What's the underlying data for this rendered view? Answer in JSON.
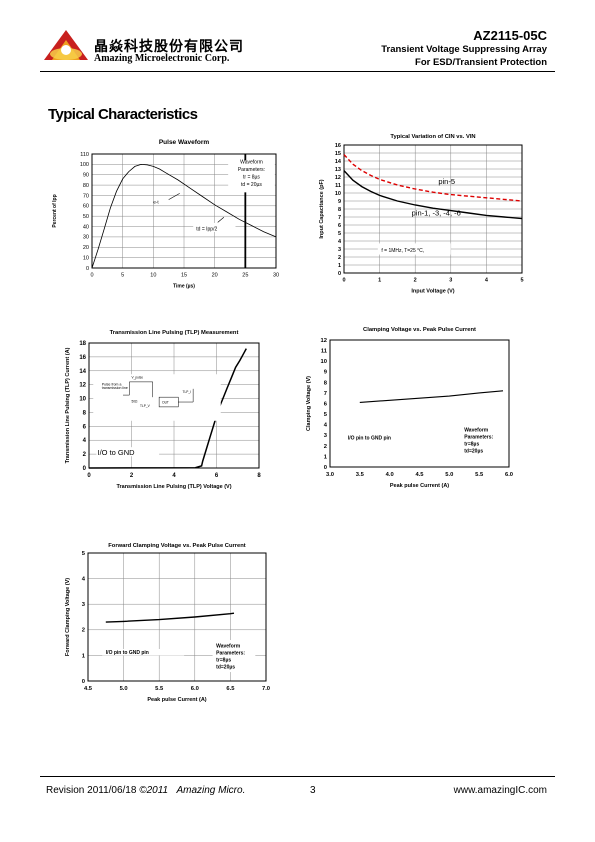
{
  "header": {
    "company_zh": "晶焱科技股份有限公司",
    "company_en": "Amazing Microelectronic Corp.",
    "part_number": "AZ2115-05C",
    "subtitle1": "Transient Voltage Suppressing Array",
    "subtitle2": "For ESD/Transient Protection",
    "logo_colors": {
      "red": "#c8201e",
      "orange": "#f0a020",
      "yellow": "#f7d04a"
    }
  },
  "section_title": "Typical Characteristics",
  "footer": {
    "revision": "Revision 2011/06/18",
    "copyright": "©2011",
    "company": "Amazing Micro.",
    "page": "3",
    "url": "www.amazingIC.com"
  },
  "chart_data": [
    {
      "id": "pulse-waveform",
      "type": "line",
      "title": "Pulse Waveform",
      "xlabel": "Time (µs)",
      "ylabel": "Percent of Ipp",
      "xlim": [
        0,
        30
      ],
      "ylim": [
        0,
        110
      ],
      "xticks": [
        0,
        5,
        10,
        15,
        20,
        25,
        30
      ],
      "yticks": [
        0,
        10,
        20,
        30,
        40,
        50,
        60,
        70,
        80,
        90,
        100,
        110
      ],
      "grid": true,
      "legend_box": [
        "Waveform",
        "Parameters:",
        "tr = 8µs",
        "td = 20µs"
      ],
      "annotations": [
        "e-t",
        "td = Ipp/2"
      ],
      "series": [
        {
          "x": [
            0,
            1,
            2,
            3,
            4,
            5,
            6,
            7,
            8,
            9,
            10,
            11,
            12,
            14,
            16,
            18,
            20,
            22,
            24,
            26,
            28,
            30
          ],
          "y": [
            0,
            18,
            38,
            58,
            74,
            86,
            93,
            98,
            100,
            99.5,
            98,
            95.5,
            92,
            85,
            77,
            69,
            61,
            54,
            47,
            41,
            35,
            30
          ]
        }
      ],
      "vertical_marker_x": 25
    },
    {
      "id": "cin-vs-vin",
      "type": "line",
      "title": "Typical Variation of CIN vs. VIN",
      "xlabel": "Input Voltage (V)",
      "ylabel": "Input Capacitance (pF)",
      "xlim": [
        0,
        5
      ],
      "ylim": [
        0,
        16
      ],
      "xticks": [
        0,
        1,
        2,
        3,
        4,
        5
      ],
      "yticks": [
        0,
        1,
        2,
        3,
        4,
        5,
        6,
        7,
        8,
        9,
        10,
        11,
        12,
        13,
        14,
        15,
        16
      ],
      "grid": true,
      "note": "f = 1MHz, T=25 °C,",
      "series": [
        {
          "name": "pin-5",
          "color": "#dd0000",
          "dashed": true,
          "x": [
            0,
            0.25,
            0.5,
            0.75,
            1,
            1.5,
            2,
            2.5,
            3,
            3.5,
            4,
            4.5,
            5
          ],
          "y": [
            14.8,
            13.6,
            12.8,
            12.2,
            11.7,
            11.0,
            10.5,
            10.1,
            9.8,
            9.6,
            9.4,
            9.2,
            9.0
          ]
        },
        {
          "name": "pin-1, -3, -4, -6",
          "color": "#000000",
          "dashed": false,
          "x": [
            0,
            0.25,
            0.5,
            0.75,
            1,
            1.5,
            2,
            2.5,
            3,
            3.5,
            4,
            4.5,
            5
          ],
          "y": [
            12.8,
            11.6,
            10.8,
            10.2,
            9.7,
            9.0,
            8.5,
            8.1,
            7.8,
            7.5,
            7.2,
            7.0,
            6.8
          ]
        }
      ]
    },
    {
      "id": "tlp",
      "type": "line",
      "title": "Transmission Line Pulsing (TLP) Measurement",
      "xlabel": "Transmission Line Pulsing (TLP) Voltage (V)",
      "ylabel": "Transmission Line Pulsing (TLP) Current (A)",
      "xlim": [
        0,
        8
      ],
      "ylim": [
        0,
        18
      ],
      "xticks": [
        0,
        2,
        4,
        6,
        8
      ],
      "yticks": [
        0,
        2,
        4,
        6,
        8,
        10,
        12,
        14,
        16,
        18
      ],
      "grid": true,
      "label": "I/O to GND",
      "inset_labels": [
        "Pulse from a",
        "transmission line",
        "V_pulse",
        "50Ω",
        "DUT",
        "TLP_V",
        "TLP_I"
      ],
      "series": [
        {
          "x": [
            0,
            5.0,
            5.3,
            5.35,
            5.5,
            5.7,
            5.9,
            6.1,
            6.3,
            6.5,
            6.7,
            6.9,
            7.1,
            7.3,
            7.4
          ],
          "y": [
            0,
            0.05,
            0.3,
            1,
            2.5,
            4.5,
            6.5,
            8.5,
            10,
            11.5,
            13,
            14.5,
            15.5,
            16.6,
            17.2
          ]
        }
      ]
    },
    {
      "id": "clamping",
      "type": "line",
      "title": "Clamping Voltage vs. Peak Pulse Current",
      "xlabel": "Peak pulse Current (A)",
      "ylabel": "Clamping Voltage (V)",
      "xlim": [
        3.0,
        6.0
      ],
      "ylim": [
        0,
        12
      ],
      "xticks": [
        "3.0",
        "3.5",
        "4.0",
        "4.5",
        "5.0",
        "5.5",
        "6.0"
      ],
      "yticks": [
        0,
        1,
        2,
        3,
        4,
        5,
        6,
        7,
        8,
        9,
        10,
        11,
        12
      ],
      "grid": false,
      "label": "I/O pin to GND pin",
      "legend_box": [
        "Waveform",
        "Parameters:",
        "tr=8µs",
        "td=20µs"
      ],
      "series": [
        {
          "x": [
            3.5,
            4.0,
            4.5,
            5.0,
            5.5,
            5.9
          ],
          "y": [
            6.1,
            6.3,
            6.5,
            6.7,
            7.0,
            7.2
          ]
        }
      ]
    },
    {
      "id": "forward-clamping",
      "type": "line",
      "title": "Forward Clamping Voltage vs. Peak Pulse Current",
      "xlabel": "Peak pulse Current (A)",
      "ylabel": "Forward Clamping Voltage (V)",
      "xlim": [
        4.5,
        7.0
      ],
      "ylim": [
        0,
        5
      ],
      "xticks": [
        "4.5",
        "5.0",
        "5.5",
        "6.0",
        "6.5",
        "7.0"
      ],
      "yticks": [
        0,
        1,
        2,
        3,
        4,
        5
      ],
      "grid": true,
      "label": "I/O pin to GND pin",
      "legend_box": [
        "Waveform",
        "Parameters:",
        "tr=8µs",
        "td=20µs"
      ],
      "series": [
        {
          "x": [
            4.75,
            5.0,
            5.5,
            6.0,
            6.5,
            6.55
          ],
          "y": [
            2.3,
            2.33,
            2.4,
            2.5,
            2.63,
            2.65
          ]
        }
      ]
    }
  ]
}
